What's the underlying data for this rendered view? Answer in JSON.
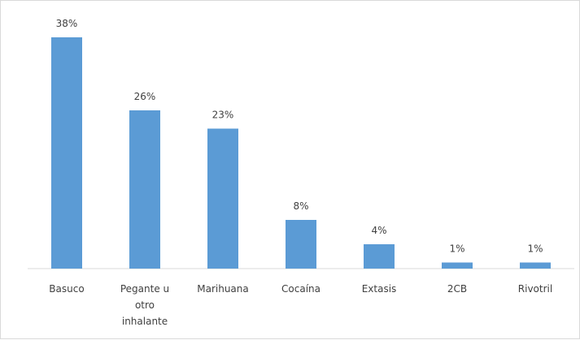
{
  "chart_data": {
    "type": "bar",
    "categories": [
      "Basuco",
      "Pegante u otro inhalante",
      "Marihuana",
      "Cocaína",
      "Extasis",
      "2CB",
      "Rivotril"
    ],
    "category_lines": [
      [
        "Basuco"
      ],
      [
        "Pegante u",
        "otro",
        "inhalante"
      ],
      [
        "Marihuana"
      ],
      [
        "Cocaína"
      ],
      [
        "Extasis"
      ],
      [
        "2CB"
      ],
      [
        "Rivotril"
      ]
    ],
    "values": [
      38,
      26,
      23,
      8,
      4,
      1,
      1
    ],
    "data_labels": [
      "38%",
      "26%",
      "23%",
      "8%",
      "4%",
      "1%",
      "1%"
    ],
    "ylim": [
      0,
      38
    ],
    "bar_color": "#5b9bd5",
    "grid": false
  }
}
